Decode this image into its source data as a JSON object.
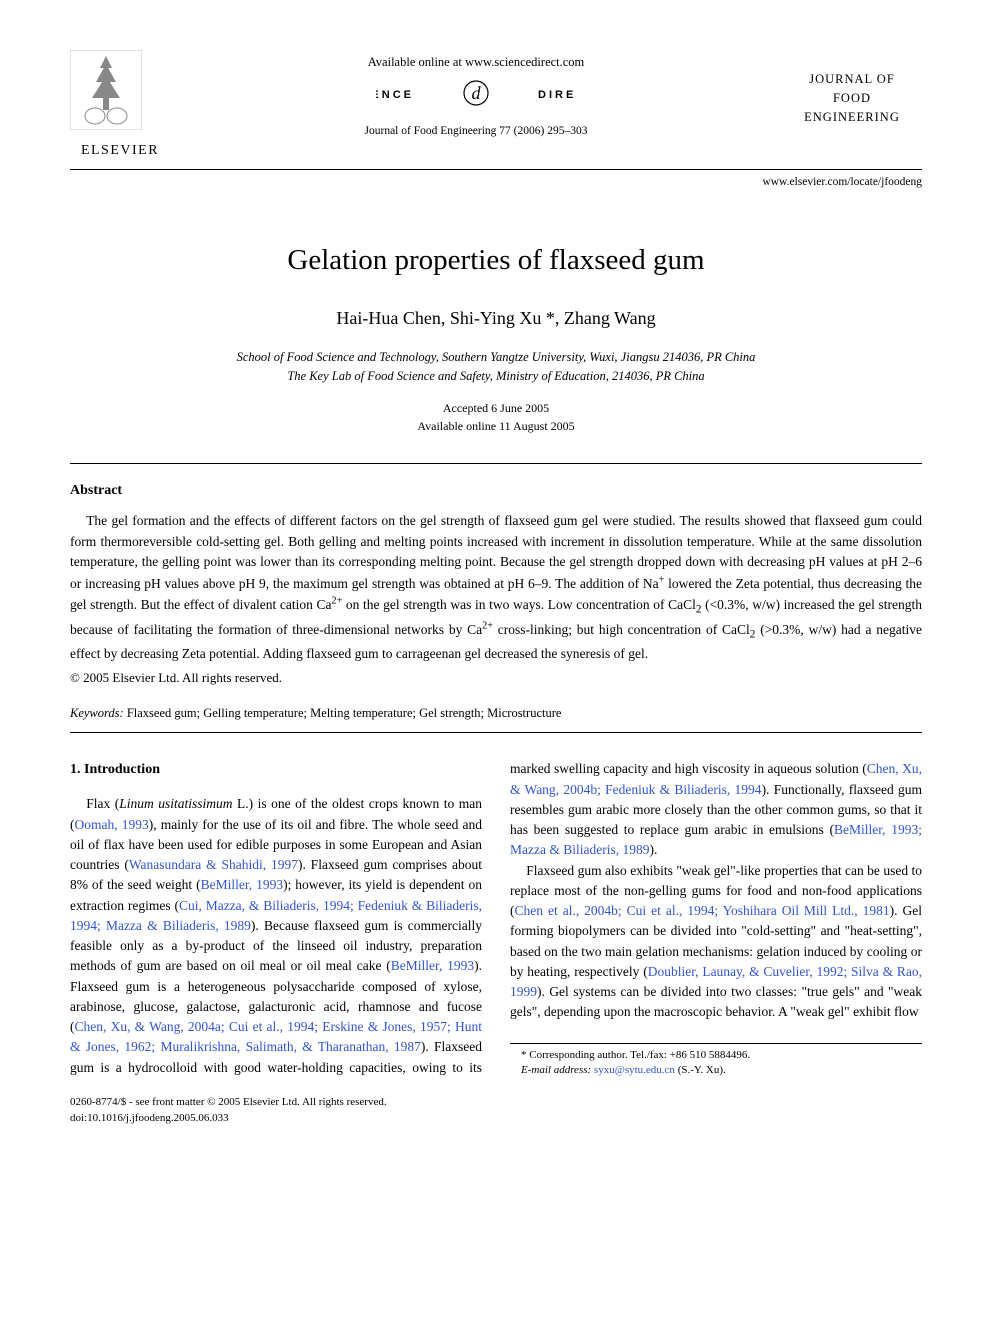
{
  "header": {
    "publisher_name": "ELSEVIER",
    "available_text": "Available online at www.sciencedirect.com",
    "sd_brand_left": "SCIENCE",
    "sd_brand_right": "DIRECT®",
    "citation": "Journal of Food Engineering 77 (2006) 295–303",
    "journal_line1": "JOURNAL OF",
    "journal_line2": "FOOD",
    "journal_line3": "ENGINEERING",
    "locate_url": "www.elsevier.com/locate/jfoodeng"
  },
  "title": "Gelation properties of flaxseed gum",
  "authors": "Hai-Hua Chen, Shi-Ying Xu *, Zhang Wang",
  "affil_line1": "School of Food Science and Technology, Southern Yangtze University, Wuxi, Jiangsu 214036, PR China",
  "affil_line2": "The Key Lab of Food Science and Safety, Ministry of Education, 214036, PR China",
  "accepted": "Accepted 6 June 2005",
  "avail_online": "Available online 11 August 2005",
  "abstract_head": "Abstract",
  "abstract_body": "The gel formation and the effects of different factors on the gel strength of flaxseed gum gel were studied. The results showed that flaxseed gum could form thermoreversible cold-setting gel. Both gelling and melting points increased with increment in dissolution temperature. While at the same dissolution temperature, the gelling point was lower than its corresponding melting point. Because the gel strength dropped down with decreasing pH values at pH 2–6 or increasing pH values above pH 9, the maximum gel strength was obtained at pH 6–9. The addition of Na+ lowered the Zeta potential, thus decreasing the gel strength. But the effect of divalent cation Ca2+ on the gel strength was in two ways. Low concentration of CaCl2 (<0.3%, w/w) increased the gel strength because of facilitating the formation of three-dimensional networks by Ca2+ cross-linking; but high concentration of CaCl2 (>0.3%, w/w) had a negative effect by decreasing Zeta potential. Adding flaxseed gum to carrageenan gel decreased the syneresis of gel.",
  "copyright": "© 2005 Elsevier Ltd. All rights reserved.",
  "keywords_label": "Keywords:",
  "keywords_text": " Flaxseed gum; Gelling temperature; Melting temperature; Gel strength; Microstructure",
  "intro_head": "1. Introduction",
  "body": {
    "p1_a": "Flax (",
    "p1_i": "Linum usitatissimum",
    "p1_b": " L.) is one of the oldest crops known to man (",
    "c1": "Oomah, 1993",
    "p1_c": "), mainly for the use of its oil and fibre. The whole seed and oil of flax have been used for edible purposes in some European and Asian countries (",
    "c2": "Wanasundara & Shahidi, 1997",
    "p1_d": "). Flaxseed gum comprises about 8% of the seed weight (",
    "c3": "BeMiller, 1993",
    "p1_e": "); however, its yield is dependent on extraction regimes (",
    "c4": "Cui, Mazza, & Biliaderis, 1994; Fedeniuk & Biliaderis, 1994; Mazza & Biliaderis, 1989",
    "p1_f": "). Because flaxseed gum is commercially feasible only as a by-product of the linseed oil industry, preparation methods of gum are based on oil meal or oil meal cake (",
    "c5": "BeMiller, 1993",
    "p1_g": "). Flaxseed gum is a heterogeneous polysaccharide composed of xylose, arabinose, glucose, galactose, galacturonic acid, rhamnose and fucose (",
    "c6": "Chen, Xu, & Wang, 2004a; Cui et al., 1994; Erskine & Jones, 1957; Hunt & Jones, 1962; Muralikrishna, Salimath, & Tharanathan, 1987",
    "p1_h": "). Flaxseed gum is a hydrocolloid with good water-holding capacities, owing to its marked swelling capacity and high viscosity in aqueous solution (",
    "c7": "Chen, Xu, & Wang, 2004b; Fedeniuk & Biliaderis, 1994",
    "p1_i2": "). Functionally, flaxseed gum resembles gum arabic more closely than the other common gums, so that it has been suggested to replace gum arabic in emulsions (",
    "c8": "BeMiller, 1993; Mazza & Biliaderis, 1989",
    "p1_j": ").",
    "p2_a": "Flaxseed gum also exhibits \"weak gel\"-like properties that can be used to replace most of the non-gelling gums for food and non-food applications (",
    "c9": "Chen et al., 2004b; Cui et al., 1994; Yoshihara Oil Mill Ltd., 1981",
    "p2_b": "). Gel forming biopolymers can be divided into \"cold-setting\" and \"heat-setting\", based on the two main gelation mechanisms: gelation induced by cooling or by heating, respectively (",
    "c10": "Doublier, Launay, & Cuvelier, 1992; Silva & Rao, 1999",
    "p2_c": "). Gel systems can be divided into two classes: \"true gels\" and \"weak gels\", depending upon the macroscopic behavior. A \"weak gel\" exhibit flow"
  },
  "footnote": {
    "corr": "* Corresponding author. Tel./fax: +86 510 5884496.",
    "email_lbl": "E-mail address:",
    "email": "syxu@sytu.edu.cn",
    "email_tail": " (S.-Y. Xu)."
  },
  "footer": {
    "line1": "0260-8774/$ - see front matter © 2005 Elsevier Ltd. All rights reserved.",
    "line2": "doi:10.1016/j.jfoodeng.2005.06.033"
  },
  "colors": {
    "link": "#3355cc",
    "text": "#000000",
    "bg": "#ffffff"
  }
}
